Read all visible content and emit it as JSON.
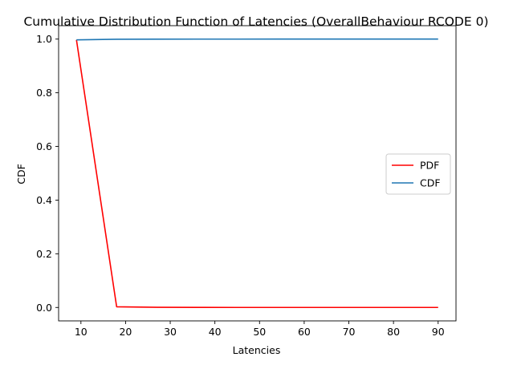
{
  "chart_data": {
    "type": "line",
    "title": "Cumulative Distribution Function of Latencies (OverallBehaviour RCODE 0)",
    "xlabel": "Latencies",
    "ylabel": "CDF",
    "xlim": [
      5,
      94
    ],
    "ylim": [
      -0.05,
      1.05
    ],
    "xticks": [
      10,
      20,
      30,
      40,
      50,
      60,
      70,
      80,
      90
    ],
    "yticks": [
      0.0,
      0.2,
      0.4,
      0.6,
      0.8,
      1.0
    ],
    "grid": false,
    "legend_position": "center-right",
    "series": [
      {
        "name": "PDF",
        "color": "#ff0000",
        "x": [
          9,
          18,
          27,
          36,
          45,
          54,
          63,
          72,
          81,
          90
        ],
        "y": [
          0.997,
          0.0025,
          0.0005,
          0.0002,
          0.0001,
          0.0001,
          0.0001,
          0.0001,
          0.0001,
          0.0001
        ]
      },
      {
        "name": "CDF",
        "color": "#1f77b4",
        "x": [
          9,
          18,
          27,
          36,
          45,
          54,
          63,
          72,
          81,
          90
        ],
        "y": [
          0.997,
          0.9995,
          0.9998,
          0.9999,
          0.9999,
          1.0,
          1.0,
          1.0,
          1.0,
          1.0
        ]
      }
    ]
  }
}
